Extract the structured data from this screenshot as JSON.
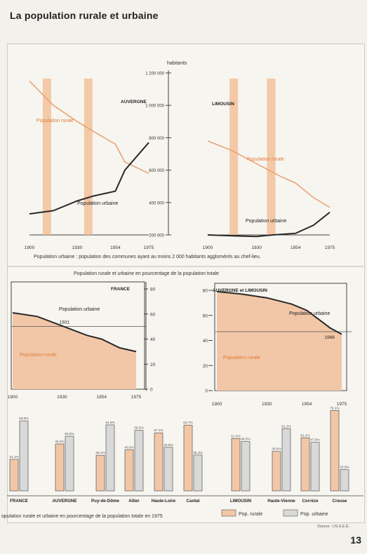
{
  "page": {
    "title": "La population rurale et urbaine",
    "page_number": "13"
  },
  "colors": {
    "rural": "#e9a576",
    "rural_fill": "#f2c7a7",
    "urban": "#2a2a2a",
    "urban_bar": "#d9d9d9",
    "bar_outline": "#555555"
  },
  "chart_data": [
    {
      "type": "line",
      "title": "AUVERGNE",
      "x": [
        1900,
        1930,
        1954,
        1975
      ],
      "xlim": [
        1900,
        1975
      ],
      "ylim": [
        200000,
        1200000
      ],
      "series": [
        {
          "name": "Population rurale",
          "color": "#e9a576",
          "points": [
            [
              1900,
              1150000
            ],
            [
              1915,
              1000000
            ],
            [
              1930,
              900000
            ],
            [
              1940,
              840000
            ],
            [
              1954,
              760000
            ],
            [
              1960,
              650000
            ],
            [
              1975,
              580000
            ]
          ]
        },
        {
          "name": "Population urbaine",
          "color": "#2a2a2a",
          "points": [
            [
              1900,
              330000
            ],
            [
              1915,
              350000
            ],
            [
              1930,
              410000
            ],
            [
              1940,
              440000
            ],
            [
              1954,
              470000
            ],
            [
              1960,
              600000
            ],
            [
              1975,
              770000
            ]
          ]
        }
      ],
      "vertical_bands": [
        1911,
        1937
      ]
    },
    {
      "type": "line",
      "title": "LIMOUSIN",
      "x": [
        1900,
        1930,
        1954,
        1975
      ],
      "xlim": [
        1900,
        1975
      ],
      "ylim": [
        200000,
        1200000
      ],
      "series": [
        {
          "name": "Population rurale",
          "color": "#e9a576",
          "points": [
            [
              1900,
              780000
            ],
            [
              1915,
              720000
            ],
            [
              1930,
              640000
            ],
            [
              1945,
              560000
            ],
            [
              1954,
              520000
            ],
            [
              1965,
              430000
            ],
            [
              1975,
              370000
            ]
          ]
        },
        {
          "name": "Population urbaine",
          "color": "#2a2a2a",
          "points": [
            [
              1900,
              200000
            ],
            [
              1915,
              195000
            ],
            [
              1930,
              190000
            ],
            [
              1940,
              200000
            ],
            [
              1954,
              210000
            ],
            [
              1965,
              260000
            ],
            [
              1975,
              340000
            ]
          ]
        }
      ],
      "vertical_bands": [
        1916,
        1939
      ]
    },
    {
      "type": "area",
      "title": "FRANCE",
      "x": [
        1900,
        1930,
        1954,
        1975
      ],
      "xlim": [
        1900,
        1975
      ],
      "ylim": [
        0,
        80
      ],
      "points": [
        [
          1900,
          61
        ],
        [
          1915,
          58
        ],
        [
          1931,
          50
        ],
        [
          1945,
          43
        ],
        [
          1954,
          40
        ],
        [
          1965,
          33
        ],
        [
          1975,
          30
        ]
      ],
      "annotation": "1931"
    },
    {
      "type": "area",
      "title": "AUVERGNE et LIMOUSIN",
      "x": [
        1900,
        1930,
        1954,
        1975
      ],
      "xlim": [
        1900,
        1975
      ],
      "ylim": [
        0,
        80
      ],
      "points": [
        [
          1900,
          79
        ],
        [
          1915,
          77
        ],
        [
          1930,
          74
        ],
        [
          1945,
          69
        ],
        [
          1954,
          64
        ],
        [
          1968,
          50
        ],
        [
          1975,
          45
        ]
      ],
      "annotation": "1968"
    },
    {
      "type": "bar",
      "categories": [
        "FRANCE",
        "AUVERGNE",
        "Puy-de-Dôme",
        "Allier",
        "Haute-Loire",
        "Cantal",
        "LIMOUSIN",
        "Haute-Vienne",
        "Corrèze",
        "Creuse"
      ],
      "series": [
        {
          "name": "Pop. rurale",
          "values": [
            31.1,
            46.2,
            35.1,
            40.5,
            57.1,
            64.7,
            51.5,
            38.8,
            52.2,
            79.1
          ],
          "labels": [
            "31.1%",
            "46.2%",
            "35.1%",
            "40.5%",
            "57.1%",
            "64.7%",
            "51.5%",
            "38.8%",
            "52.2%",
            "79.1%"
          ]
        },
        {
          "name": "Pop. urbaine",
          "values": [
            68.9,
            53.8,
            64.9,
            59.5,
            42.9,
            35.3,
            48.5,
            61.2,
            47.8,
            20.9
          ],
          "labels": [
            "68.9%",
            "53.8%",
            "64.9%",
            "59.5%",
            "42.9%",
            "35.3%",
            "48.5%",
            "61.2%",
            "47.8%",
            "20.9%"
          ]
        }
      ]
    }
  ],
  "texts": {
    "y_axis_unit": "habitants",
    "y_ticks_top": [
      "200 000",
      "400 000",
      "600 000",
      "800 000",
      "1 000 000",
      "1 200 000"
    ],
    "x_ticks": [
      "1900",
      "1930",
      "1954",
      "1975"
    ],
    "urban_definition": "Population urbaine : population des communes ayant au moins 2 000 habitants agglomérés au chef-lieu.",
    "label_rural": "Population rurale",
    "label_urban": "Population urbaine",
    "middle_title": "Population rurale et urbaine en pourcentage de la population totale",
    "y_ticks_pct": [
      "0",
      "20",
      "40",
      "60",
      "80"
    ],
    "bottom_caption": "opulation rurale et urbaine en pourcentage de la population totale en 1975",
    "legend_rural": "Pop. rurale",
    "legend_urban": "Pop. urbaine",
    "source": "Source : I.N.S.E.E."
  }
}
